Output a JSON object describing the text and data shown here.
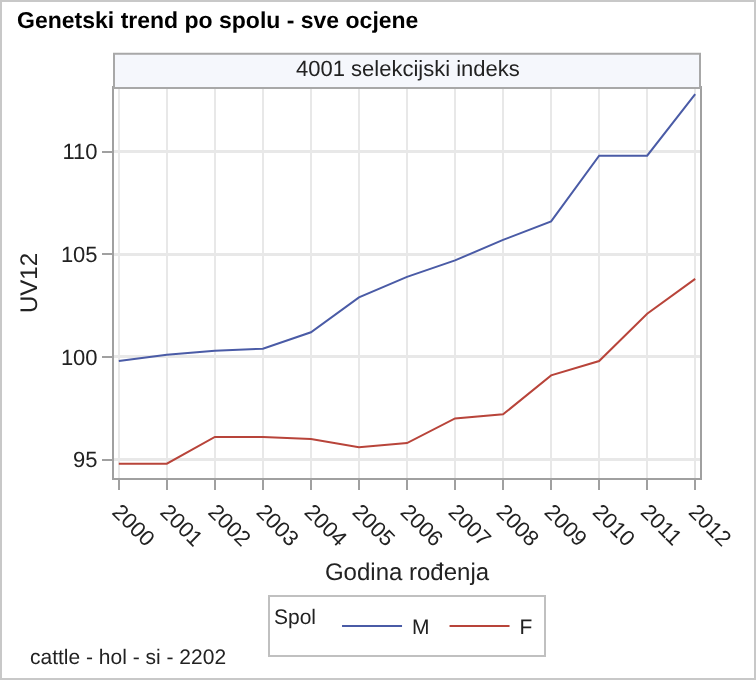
{
  "chart_data": {
    "type": "line",
    "title": "Genetski trend po spolu - sve ocjene",
    "subtitle": "4001 selekcijski indeks",
    "xlabel": "Godina rođenja",
    "ylabel": "UV12",
    "legend_title": "Spol",
    "x": [
      2000,
      2001,
      2002,
      2003,
      2004,
      2005,
      2006,
      2007,
      2008,
      2009,
      2010,
      2011,
      2012
    ],
    "series": [
      {
        "name": "M",
        "color": "#4a5ba6",
        "values": [
          99.8,
          100.1,
          100.3,
          100.4,
          101.2,
          102.9,
          103.9,
          104.7,
          105.7,
          106.6,
          109.8,
          109.8,
          112.8
        ]
      },
      {
        "name": "F",
        "color": "#b8443a",
        "values": [
          94.8,
          94.8,
          96.1,
          96.1,
          96.0,
          95.6,
          95.8,
          97.0,
          97.2,
          99.1,
          99.8,
          102.1,
          103.8
        ]
      }
    ],
    "xlim": [
      1999.9,
      2012.1
    ],
    "xticks": [
      2000,
      2001,
      2002,
      2003,
      2004,
      2005,
      2006,
      2007,
      2008,
      2009,
      2010,
      2011,
      2012
    ],
    "ylim": [
      94.1,
      113.1
    ],
    "yticks": [
      95,
      100,
      105,
      110
    ],
    "grid": true,
    "legend": "bottom",
    "marker": "none",
    "line_style": "solid",
    "annotations": [
      "cattle - hol - si - 2202"
    ]
  }
}
